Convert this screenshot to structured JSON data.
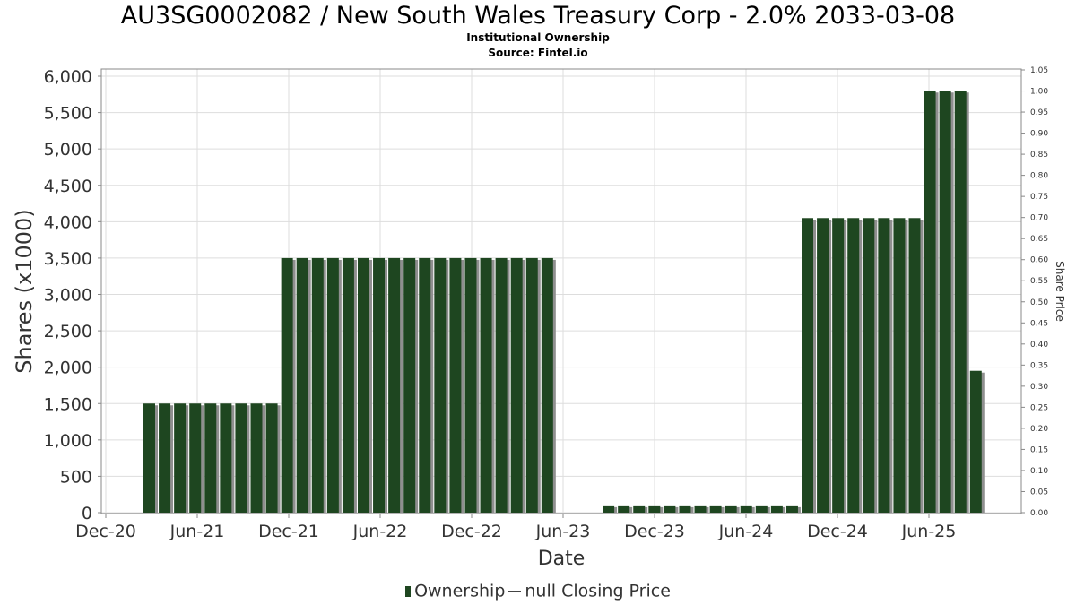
{
  "title": "AU3SG0002082 / New South Wales Treasury Corp - 2.0% 2033-03-08",
  "subtitle1": "Institutional Ownership",
  "subtitle2": "Source: Fintel.io",
  "legend": {
    "ownership": "Ownership",
    "price": "null Closing Price"
  },
  "colors": {
    "bar": "#1e4620",
    "shadow": "#8f8f8f",
    "grid": "#dddddd",
    "axis": "#888888"
  },
  "chart_data": {
    "type": "bar",
    "xlabel": "Date",
    "ylabel": "Shares (x1000)",
    "y2label": "Share Price",
    "ylim": [
      0,
      6000
    ],
    "y2lim": [
      0,
      1.05
    ],
    "grid": true,
    "legend_position": "bottom",
    "x_ticks": [
      "Dec-20",
      "Jun-21",
      "Dec-21",
      "Jun-22",
      "Dec-22",
      "Jun-23",
      "Dec-23",
      "Jun-24",
      "Dec-24",
      "Jun-25"
    ],
    "y_ticks": [
      "0",
      "500",
      "1,000",
      "1,500",
      "2,000",
      "2,500",
      "3,000",
      "3,500",
      "4,000",
      "4,500",
      "5,000",
      "5,500",
      "6,000"
    ],
    "y2_ticks": [
      "0.00",
      "0.05",
      "0.10",
      "0.15",
      "0.20",
      "0.25",
      "0.30",
      "0.35",
      "0.40",
      "0.45",
      "0.50",
      "0.55",
      "0.60",
      "0.65",
      "0.70",
      "0.75",
      "0.80",
      "0.85",
      "0.90",
      "0.95",
      "1.00",
      "1.05"
    ],
    "series": [
      {
        "name": "Ownership",
        "values": [
          1500,
          1500,
          1500,
          1500,
          1500,
          1500,
          1500,
          1500,
          1500,
          3500,
          3500,
          3500,
          3500,
          3500,
          3500,
          3500,
          3500,
          3500,
          3500,
          3500,
          3500,
          3500,
          3500,
          3500,
          3500,
          3500,
          3500,
          0,
          0,
          0,
          100,
          100,
          100,
          100,
          100,
          100,
          100,
          100,
          100,
          100,
          100,
          100,
          100,
          4050,
          4050,
          4050,
          4050,
          4050,
          4050,
          4050,
          4050,
          5800,
          5800,
          5800,
          1950
        ]
      }
    ]
  }
}
